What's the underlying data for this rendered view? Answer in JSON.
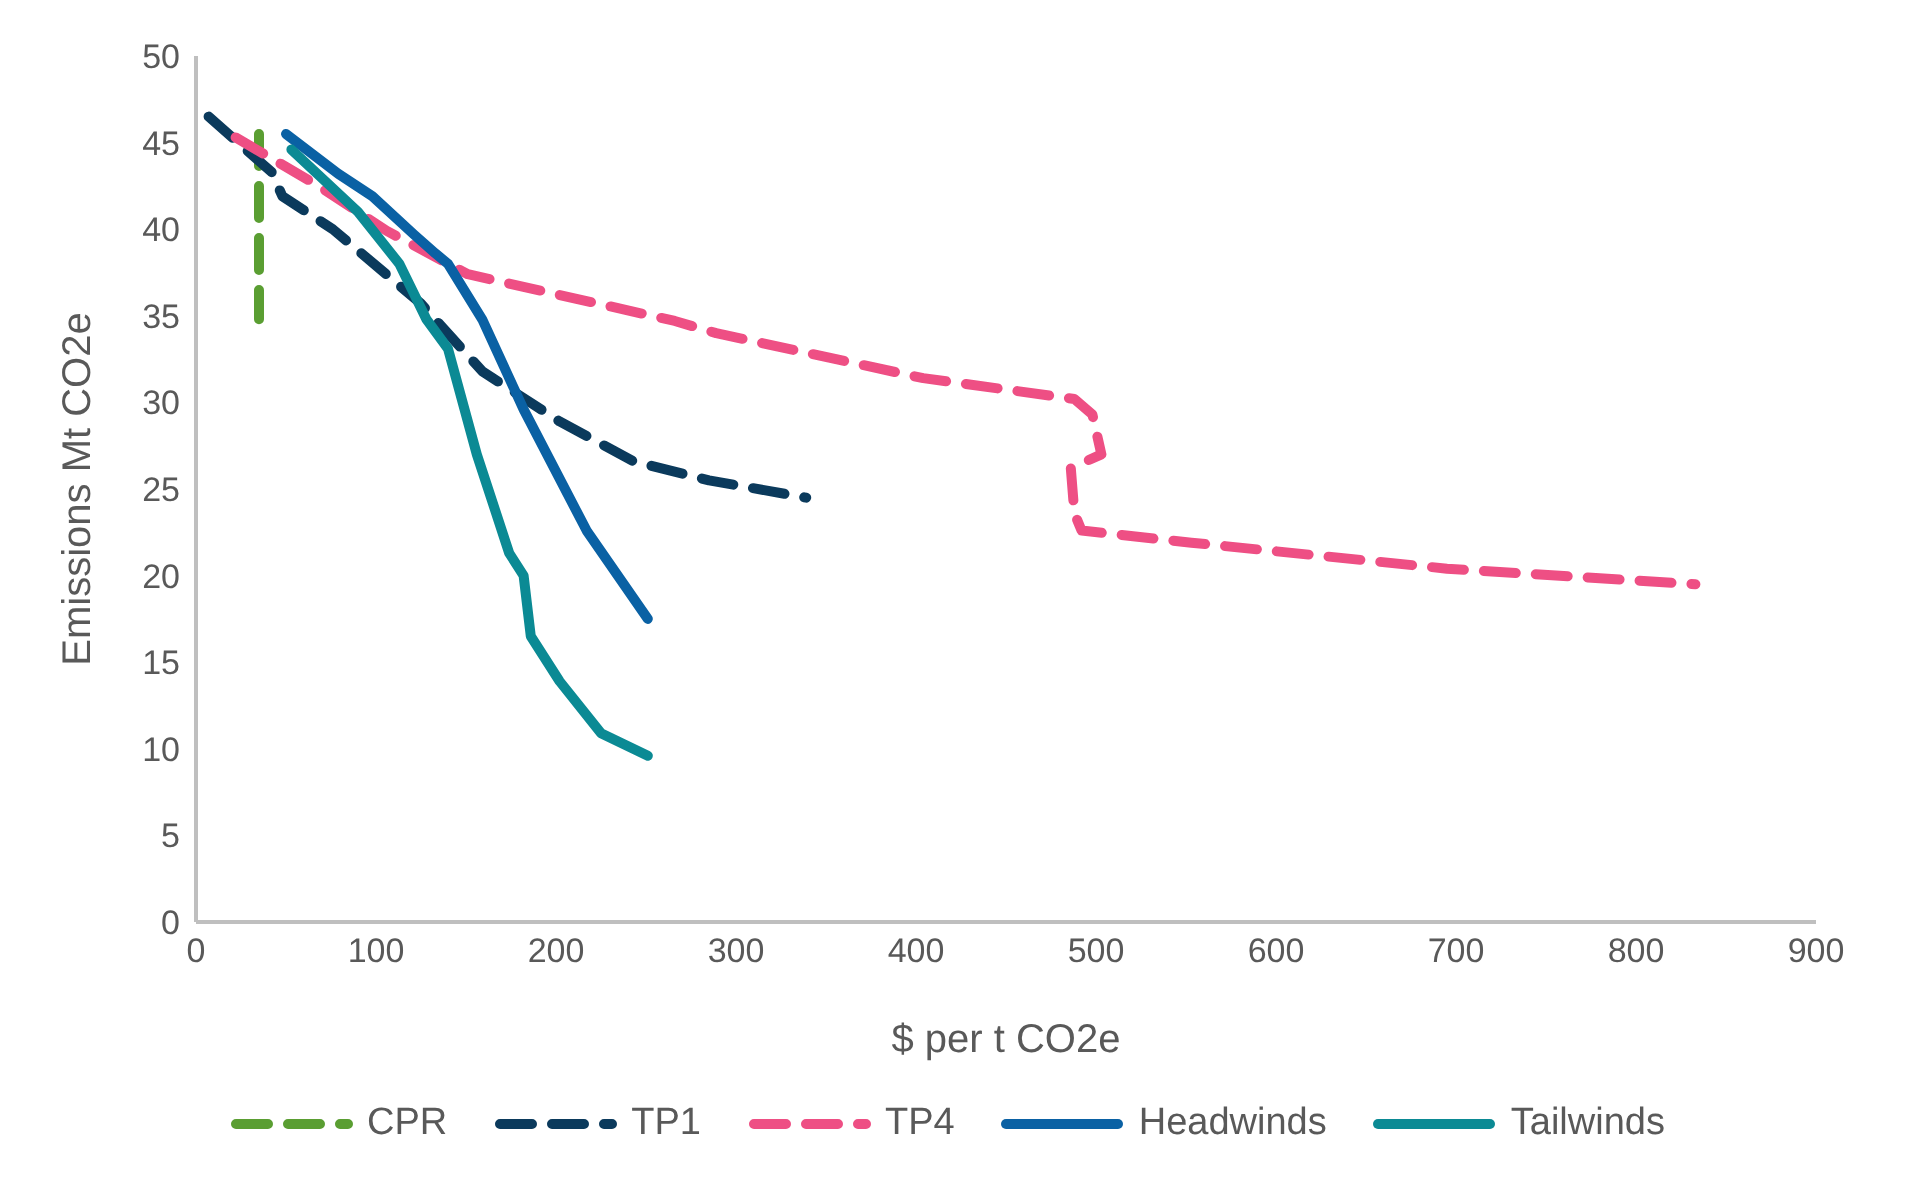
{
  "chart_data": {
    "type": "line",
    "xlabel": "$ per t CO2e",
    "ylabel": "Emissions Mt CO2e",
    "xlim": [
      0,
      900
    ],
    "xticks": [
      0,
      100,
      200,
      300,
      400,
      500,
      600,
      700,
      800,
      900
    ],
    "ylim": [
      0,
      50
    ],
    "yticks": [
      0,
      5,
      10,
      15,
      20,
      25,
      30,
      35,
      40,
      45,
      50
    ],
    "grid": false,
    "legend": "bottom",
    "marker": "none",
    "series": [
      {
        "name": "CPR",
        "color": "#5a9e32",
        "line_style": "dashed",
        "x": [
          35,
          35
        ],
        "values": [
          45.5,
          34.8
        ]
      },
      {
        "name": "TP1",
        "color": "#0b3a5c",
        "line_style": "dashed",
        "x": [
          7,
          42,
          48,
          76,
          125,
          159,
          202,
          243,
          285,
          339
        ],
        "values": [
          46.5,
          43.3,
          41.9,
          40,
          35.7,
          31.8,
          28.9,
          26.6,
          25.5,
          24.5
        ]
      },
      {
        "name": "TP4",
        "color": "#ee4f84",
        "line_style": "dashed",
        "x": [
          22,
          68,
          106,
          151,
          266,
          289,
          404,
          488,
          498,
          503,
          486,
          488,
          492,
          553,
          695,
          833
        ],
        "values": [
          45.3,
          42.5,
          39.9,
          37.4,
          34.7,
          34,
          31.4,
          30.2,
          29.3,
          27,
          26.2,
          23.6,
          22.6,
          21.9,
          20.4,
          19.5
        ]
      },
      {
        "name": "Headwinds",
        "color": "#0a61a4",
        "line_style": "solid",
        "x": [
          50,
          79,
          98,
          121,
          133,
          140,
          159,
          182,
          217,
          251
        ],
        "values": [
          45.5,
          43.2,
          41.9,
          39.7,
          38.6,
          38,
          34.8,
          29.6,
          22.6,
          17.5
        ]
      },
      {
        "name": "Tailwinds",
        "color": "#0b8a94",
        "line_style": "solid",
        "x": [
          53,
          90,
          113,
          128,
          140,
          156,
          174,
          182,
          186,
          202,
          225,
          251
        ],
        "values": [
          44.6,
          41,
          38,
          34.8,
          33.1,
          27,
          21.3,
          20,
          16.5,
          13.9,
          10.9,
          9.6
        ]
      }
    ]
  }
}
